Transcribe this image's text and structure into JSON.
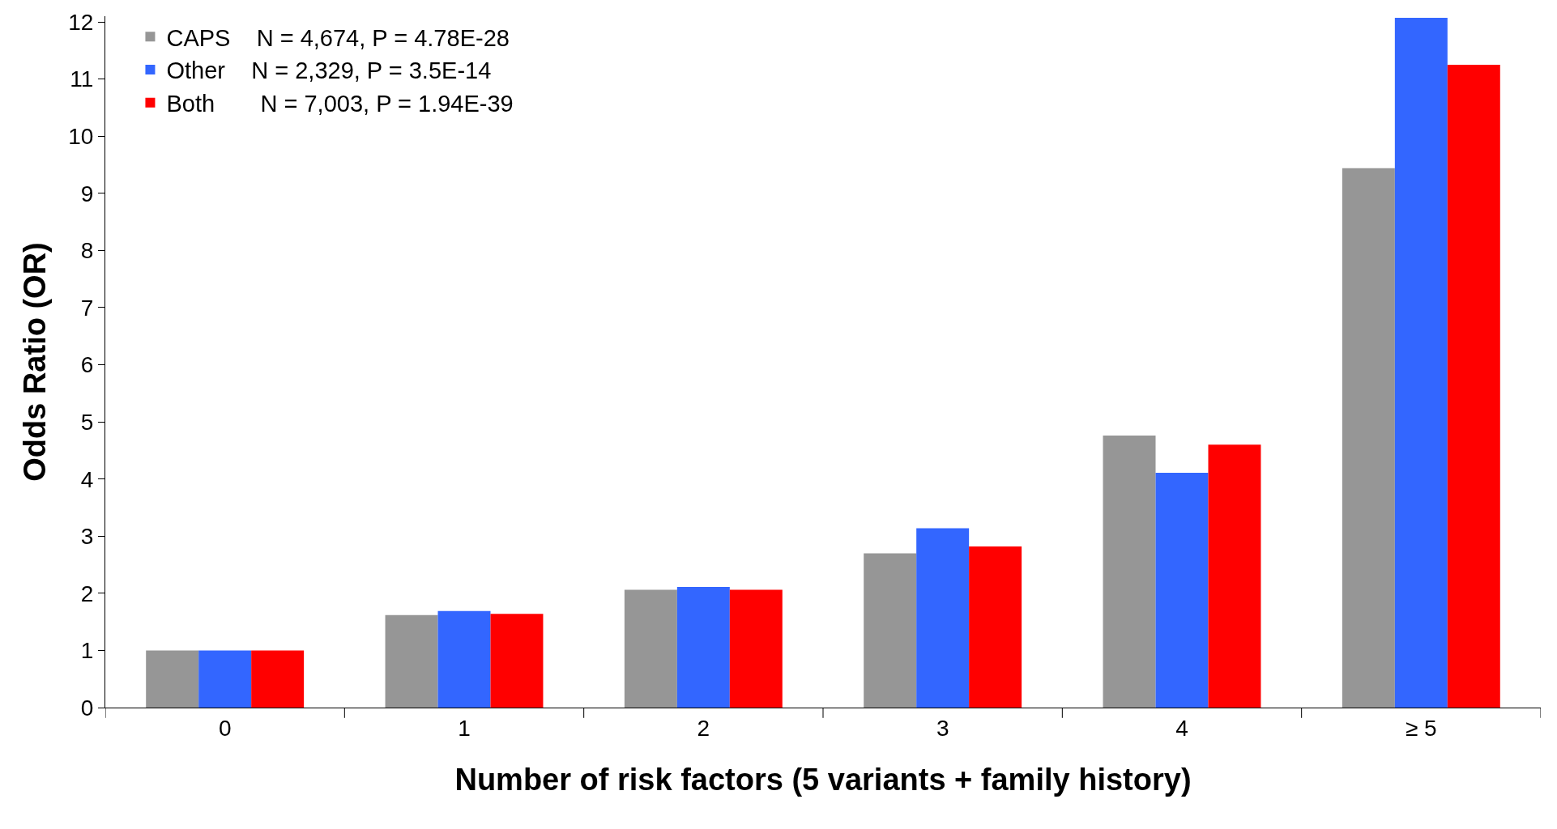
{
  "chart_data": {
    "type": "bar",
    "xlabel": "Number of risk factors (5 variants + family history)",
    "ylabel": "Odds Ratio (OR)",
    "categories": [
      "0",
      "1",
      "2",
      "3",
      "4",
      "≥ 5"
    ],
    "series": [
      {
        "name": "CAPS    N = 4,674, P = 4.78E-28",
        "color": "#969696",
        "values": [
          1.0,
          1.62,
          2.06,
          2.7,
          4.76,
          9.44
        ]
      },
      {
        "name": "Other    N = 2,329, P = 3.5E-14",
        "color": "#3366ff",
        "values": [
          1.0,
          1.69,
          2.11,
          3.14,
          4.11,
          12.07
        ]
      },
      {
        "name": "Both       N = 7,003, P = 1.94E-39",
        "color": "#ff0000",
        "values": [
          1.0,
          1.64,
          2.06,
          2.82,
          4.6,
          11.25
        ]
      }
    ],
    "ylim": [
      0,
      12.1
    ],
    "yticks": [
      0,
      1,
      2,
      3,
      4,
      5,
      6,
      7,
      8,
      9,
      10,
      11,
      12
    ],
    "legend": "top left"
  }
}
